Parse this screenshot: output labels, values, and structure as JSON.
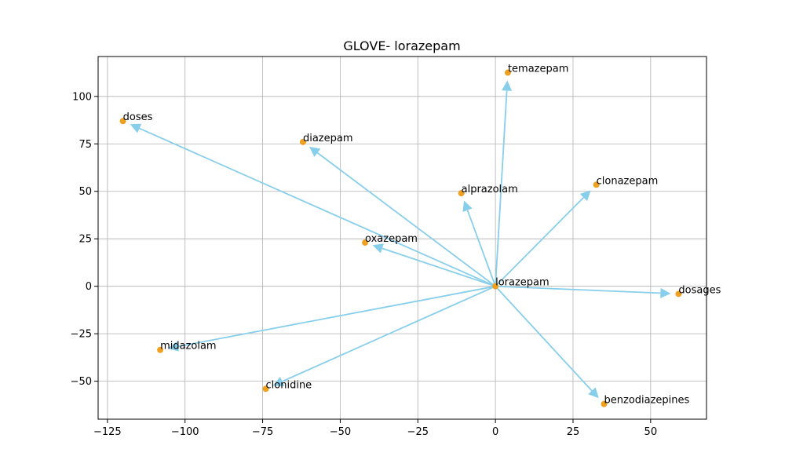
{
  "chart_data": {
    "type": "scatter",
    "title": "GLOVE- lorazepam",
    "xlabel": "",
    "ylabel": "",
    "xlim": [
      -128,
      68
    ],
    "ylim": [
      -70,
      121
    ],
    "xticks": [
      -125,
      -100,
      -75,
      -50,
      -25,
      0,
      25,
      50
    ],
    "yticks": [
      -50,
      -25,
      0,
      25,
      50,
      75,
      100
    ],
    "grid": true,
    "origin": {
      "label": "lorazepam",
      "x": 0,
      "y": 0
    },
    "points": [
      {
        "label": "temazepam",
        "x": 4,
        "y": 112.5
      },
      {
        "label": "doses",
        "x": -120,
        "y": 87
      },
      {
        "label": "diazepam",
        "x": -62,
        "y": 76
      },
      {
        "label": "alprazolam",
        "x": -11,
        "y": 49
      },
      {
        "label": "clonazepam",
        "x": 32.5,
        "y": 53.5
      },
      {
        "label": "oxazepam",
        "x": -42,
        "y": 23
      },
      {
        "label": "dosages",
        "x": 59,
        "y": -4
      },
      {
        "label": "midazolam",
        "x": -108,
        "y": -33.5
      },
      {
        "label": "clonidine",
        "x": -74,
        "y": -54
      },
      {
        "label": "benzodiazepines",
        "x": 35,
        "y": -62
      }
    ],
    "colors": {
      "point": "#f0a020",
      "arrow": "#87ceeb"
    }
  }
}
